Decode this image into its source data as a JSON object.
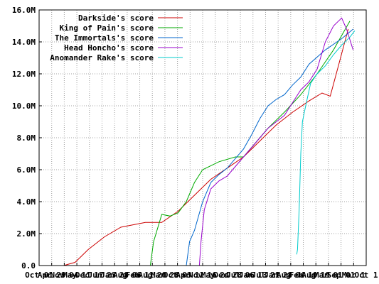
{
  "chart_data": {
    "type": "line",
    "title": "",
    "xlabel": "",
    "ylabel": "",
    "x_tick_labels": [
      "Oct 01",
      "Apr 29",
      "Nov 04",
      "May 11",
      "Dec 17",
      "Jun 23",
      "Jan 28",
      "Aug 06",
      "Feb 11",
      "Aug 20",
      "Mar 28",
      "Oct 03",
      "Apr 11",
      "Nov 16",
      "May 24",
      "Dec 28",
      "Jul 06",
      "Jan 13",
      "Jul 21",
      "Jan 28",
      "Aug 04",
      "Feb 10",
      "Aug 19",
      "Mar 01",
      "Sep 01",
      "Mar 1",
      "Oct 1"
    ],
    "y_tick_labels": [
      "0.0",
      "2.0M",
      "4.0M",
      "6.0M",
      "8.0M",
      "10.0M",
      "12.0M",
      "14.0M",
      "16.0M"
    ],
    "ylim": [
      0,
      16000000
    ],
    "xlim": [
      0,
      20
    ],
    "grid": true,
    "legend_position": "top-left",
    "series": [
      {
        "name": "Darkside's score",
        "color": "#cc0000",
        "points": [
          [
            1.5,
            0
          ],
          [
            2.2,
            200000
          ],
          [
            3.0,
            1000000
          ],
          [
            4.0,
            1800000
          ],
          [
            5.0,
            2400000
          ],
          [
            6.5,
            2700000
          ],
          [
            7.5,
            2700000
          ],
          [
            8.5,
            3400000
          ],
          [
            9.5,
            4400000
          ],
          [
            10.5,
            5400000
          ],
          [
            11.5,
            6100000
          ],
          [
            12.5,
            6800000
          ],
          [
            13.5,
            7800000
          ],
          [
            14.5,
            8800000
          ],
          [
            15.5,
            9600000
          ],
          [
            16.5,
            10300000
          ],
          [
            17.3,
            10800000
          ],
          [
            17.8,
            10600000
          ],
          [
            18.3,
            12500000
          ],
          [
            18.9,
            14800000
          ]
        ]
      },
      {
        "name": "King of Pain's score",
        "color": "#00aa00",
        "points": [
          [
            6.8,
            0
          ],
          [
            7.0,
            1500000
          ],
          [
            7.5,
            3200000
          ],
          [
            8.0,
            3100000
          ],
          [
            8.5,
            3300000
          ],
          [
            9.0,
            4000000
          ],
          [
            9.5,
            5200000
          ],
          [
            10.0,
            6000000
          ],
          [
            11.0,
            6500000
          ],
          [
            12.0,
            6800000
          ],
          [
            12.5,
            6800000
          ],
          [
            13.0,
            7400000
          ],
          [
            14.0,
            8600000
          ],
          [
            15.0,
            9600000
          ],
          [
            16.0,
            10700000
          ],
          [
            17.0,
            12000000
          ],
          [
            18.0,
            13500000
          ],
          [
            19.0,
            15300000
          ]
        ]
      },
      {
        "name": "The Immortals's score",
        "color": "#0066cc",
        "points": [
          [
            9.0,
            0
          ],
          [
            9.2,
            1500000
          ],
          [
            9.5,
            2200000
          ],
          [
            10.0,
            4000000
          ],
          [
            10.5,
            5200000
          ],
          [
            11.0,
            5700000
          ],
          [
            11.5,
            6100000
          ],
          [
            12.0,
            6700000
          ],
          [
            12.5,
            7300000
          ],
          [
            13.0,
            8200000
          ],
          [
            13.5,
            9200000
          ],
          [
            14.0,
            10000000
          ],
          [
            14.5,
            10400000
          ],
          [
            15.0,
            10700000
          ],
          [
            15.5,
            11300000
          ],
          [
            16.0,
            11800000
          ],
          [
            16.5,
            12600000
          ],
          [
            17.5,
            13500000
          ],
          [
            18.5,
            14200000
          ],
          [
            19.2,
            14800000
          ]
        ]
      },
      {
        "name": "Head Honcho's score",
        "color": "#9900cc",
        "points": [
          [
            9.8,
            0
          ],
          [
            9.9,
            1500000
          ],
          [
            10.1,
            3500000
          ],
          [
            10.5,
            4800000
          ],
          [
            11.0,
            5300000
          ],
          [
            11.5,
            5600000
          ],
          [
            12.0,
            6200000
          ],
          [
            12.5,
            6800000
          ],
          [
            13.0,
            7400000
          ],
          [
            13.5,
            8000000
          ],
          [
            14.0,
            8600000
          ],
          [
            14.5,
            9000000
          ],
          [
            15.0,
            9400000
          ],
          [
            15.5,
            10200000
          ],
          [
            16.0,
            11000000
          ],
          [
            16.5,
            11500000
          ],
          [
            17.0,
            12300000
          ],
          [
            17.5,
            14000000
          ],
          [
            18.0,
            15000000
          ],
          [
            18.5,
            15500000
          ],
          [
            18.8,
            14800000
          ],
          [
            19.2,
            13500000
          ]
        ]
      },
      {
        "name": "Anomander Rake's score",
        "color": "#00cccc",
        "points": [
          [
            15.75,
            700000
          ],
          [
            15.8,
            1000000
          ],
          [
            15.9,
            3500000
          ],
          [
            16.0,
            7000000
          ],
          [
            16.1,
            9000000
          ],
          [
            16.3,
            10000000
          ],
          [
            16.6,
            11400000
          ],
          [
            17.0,
            12000000
          ],
          [
            17.5,
            12500000
          ],
          [
            18.0,
            13200000
          ],
          [
            18.5,
            13800000
          ],
          [
            19.0,
            14300000
          ],
          [
            19.3,
            14700000
          ]
        ]
      }
    ]
  }
}
